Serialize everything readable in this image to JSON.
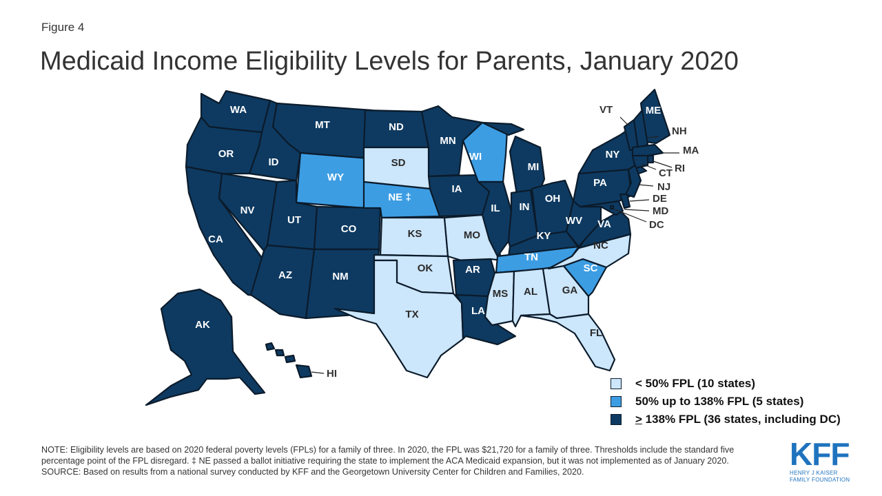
{
  "figure_label": "Figure 4",
  "title": "Medicaid Income Eligibility Levels for Parents, January 2020",
  "colors": {
    "low": "#cce6fb",
    "mid": "#3d9de3",
    "high": "#0e3a61",
    "border": "#0b1b2b",
    "label_dark": "#2a2a2a",
    "label_light": "#ffffff",
    "logo": "#1e73be"
  },
  "legend": [
    {
      "category": "low",
      "label": "< 50% FPL (10 states)"
    },
    {
      "category": "mid",
      "label": "50% up to 138% FPL (5 states)"
    },
    {
      "category": "high",
      "prefix": ">",
      "label": " 138% FPL (36 states, including DC)"
    }
  ],
  "states": [
    {
      "abbr": "WA",
      "category": "high"
    },
    {
      "abbr": "OR",
      "category": "high"
    },
    {
      "abbr": "CA",
      "category": "high"
    },
    {
      "abbr": "ID",
      "category": "high"
    },
    {
      "abbr": "NV",
      "category": "high"
    },
    {
      "abbr": "MT",
      "category": "high"
    },
    {
      "abbr": "WY",
      "category": "mid"
    },
    {
      "abbr": "UT",
      "category": "high"
    },
    {
      "abbr": "AZ",
      "category": "high"
    },
    {
      "abbr": "CO",
      "category": "high"
    },
    {
      "abbr": "NM",
      "category": "high"
    },
    {
      "abbr": "ND",
      "category": "high"
    },
    {
      "abbr": "SD",
      "category": "low"
    },
    {
      "abbr": "NE",
      "category": "mid",
      "note": "‡"
    },
    {
      "abbr": "KS",
      "category": "low"
    },
    {
      "abbr": "OK",
      "category": "low"
    },
    {
      "abbr": "TX",
      "category": "low"
    },
    {
      "abbr": "MN",
      "category": "high"
    },
    {
      "abbr": "IA",
      "category": "high"
    },
    {
      "abbr": "MO",
      "category": "low"
    },
    {
      "abbr": "AR",
      "category": "high"
    },
    {
      "abbr": "LA",
      "category": "high"
    },
    {
      "abbr": "WI",
      "category": "mid"
    },
    {
      "abbr": "IL",
      "category": "high"
    },
    {
      "abbr": "MI",
      "category": "high"
    },
    {
      "abbr": "IN",
      "category": "high"
    },
    {
      "abbr": "OH",
      "category": "high"
    },
    {
      "abbr": "KY",
      "category": "high"
    },
    {
      "abbr": "TN",
      "category": "mid"
    },
    {
      "abbr": "MS",
      "category": "low"
    },
    {
      "abbr": "AL",
      "category": "low"
    },
    {
      "abbr": "GA",
      "category": "low"
    },
    {
      "abbr": "FL",
      "category": "low"
    },
    {
      "abbr": "SC",
      "category": "mid"
    },
    {
      "abbr": "NC",
      "category": "low"
    },
    {
      "abbr": "VA",
      "category": "high"
    },
    {
      "abbr": "WV",
      "category": "high"
    },
    {
      "abbr": "PA",
      "category": "high"
    },
    {
      "abbr": "NY",
      "category": "high"
    },
    {
      "abbr": "ME",
      "category": "high"
    },
    {
      "abbr": "VT",
      "category": "high"
    },
    {
      "abbr": "NH",
      "category": "high"
    },
    {
      "abbr": "MA",
      "category": "high"
    },
    {
      "abbr": "RI",
      "category": "high"
    },
    {
      "abbr": "CT",
      "category": "high"
    },
    {
      "abbr": "NJ",
      "category": "high"
    },
    {
      "abbr": "DE",
      "category": "high"
    },
    {
      "abbr": "MD",
      "category": "high"
    },
    {
      "abbr": "DC",
      "category": "high"
    },
    {
      "abbr": "AK",
      "category": "high"
    },
    {
      "abbr": "HI",
      "category": "high"
    }
  ],
  "notes": {
    "note": "NOTE: Eligibility levels are based on 2020 federal poverty levels (FPLs) for a family of three. In 2020, the FPL was $21,720 for a family of three. Thresholds include the standard five percentage point of the FPL disregard. ‡ NE passed a ballot initiative requiring the state to implement the ACA Medicaid expansion, but it was not implemented as of January 2020.",
    "source": "SOURCE: Based on results from a national survey conducted by KFF and the Georgetown University Center for Children and Families, 2020."
  },
  "logo": {
    "mark": "KFF",
    "line1": "HENRY J KAISER",
    "line2": "FAMILY FOUNDATION"
  }
}
